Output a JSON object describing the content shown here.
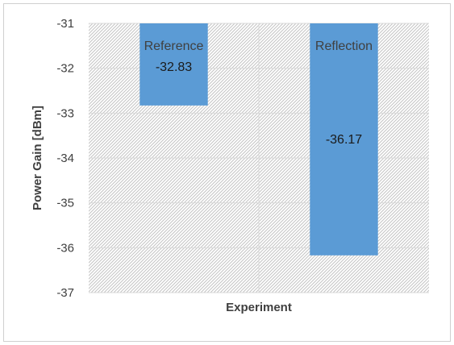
{
  "chart_data": {
    "type": "bar",
    "categories": [
      "Reference",
      "Reflection"
    ],
    "values": [
      -32.83,
      -36.17
    ],
    "data_labels": [
      "-32.83",
      "-36.17"
    ],
    "xlabel": "Experiment",
    "ylabel": "Power Gain [dBm]",
    "ylim": [
      -37,
      -31
    ],
    "yticks": [
      -31,
      -32,
      -33,
      -34,
      -35,
      -36,
      -37
    ],
    "ytick_labels": [
      "-31",
      "-32",
      "-33",
      "-34",
      "-35",
      "-36",
      "-37"
    ],
    "bar_color": "#5b9bd5",
    "grid": true,
    "plot_background": "hatched-gray",
    "legend": "none"
  }
}
